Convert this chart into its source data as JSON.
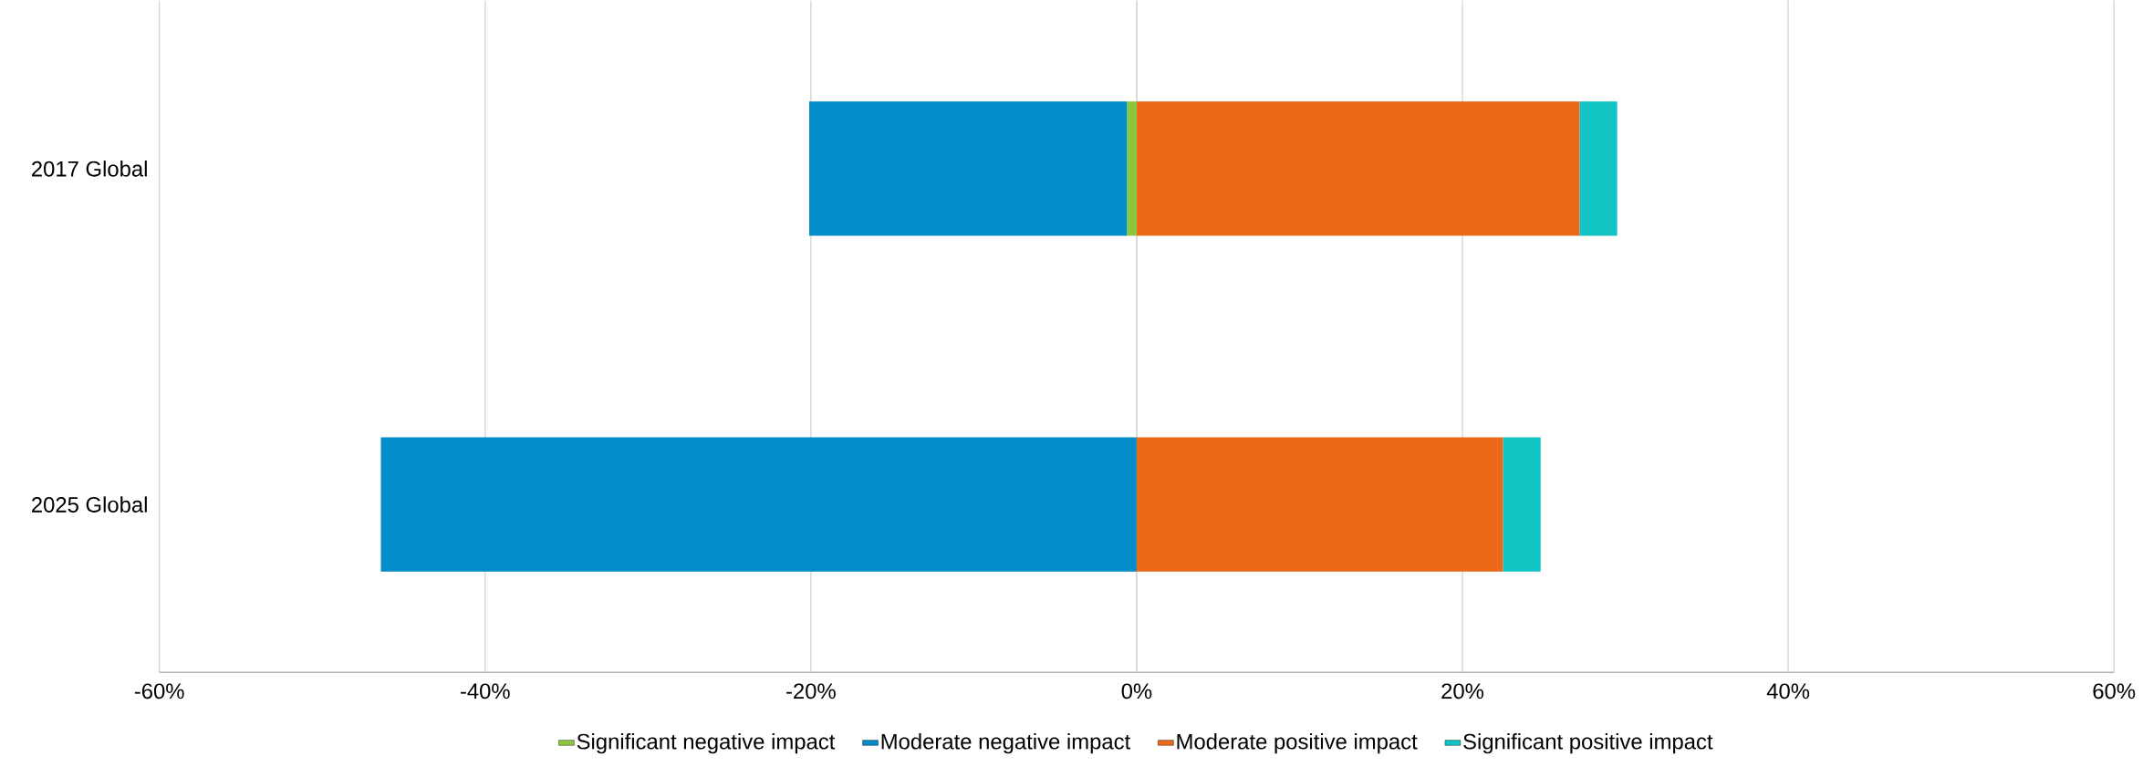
{
  "chart_data": {
    "type": "bar",
    "orientation": "horizontal",
    "stacked": true,
    "categories": [
      "2017 Global",
      "2025 Global"
    ],
    "series": [
      {
        "name": "Significant negative impact",
        "color": "#8cc63e",
        "values": [
          -0.6,
          0
        ]
      },
      {
        "name": "Moderate negative impact",
        "color": "#028cc9",
        "values": [
          -19.5,
          -46.4
        ]
      },
      {
        "name": "Moderate positive impact",
        "color": "#eb6a19",
        "values": [
          27.2,
          22.5
        ]
      },
      {
        "name": "Significant positive impact",
        "color": "#12c4c4",
        "values": [
          2.3,
          2.3
        ]
      }
    ],
    "xlim": [
      -60,
      60
    ],
    "xticks": [
      {
        "value": -60,
        "label": "-60%"
      },
      {
        "value": -40,
        "label": "-40%"
      },
      {
        "value": -20,
        "label": "-20%"
      },
      {
        "value": 0,
        "label": "0%"
      },
      {
        "value": 20,
        "label": "20%"
      },
      {
        "value": 40,
        "label": "40%"
      },
      {
        "value": 60,
        "label": "60%"
      }
    ],
    "grid": "x",
    "legend": "bottom"
  }
}
